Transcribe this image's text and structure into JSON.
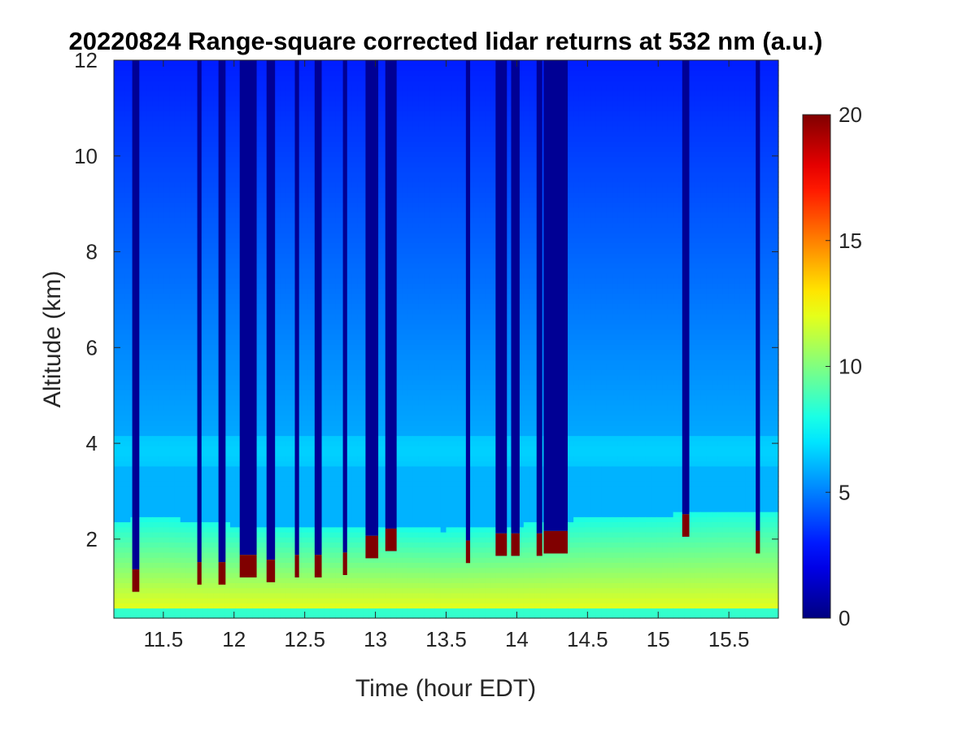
{
  "chart_data": {
    "type": "heatmap",
    "title": "20220824  Range-square corrected lidar returns at 532 nm (a.u.)",
    "xlabel": "Time (hour EDT)",
    "ylabel": "Altitude (km)",
    "xlim": [
      11.15,
      15.85
    ],
    "ylim": [
      0.35,
      12
    ],
    "xticks": [
      11.5,
      12,
      12.5,
      13,
      13.5,
      14,
      14.5,
      15,
      15.5
    ],
    "xtick_labels": [
      "11.5",
      "12",
      "12.5",
      "13",
      "13.5",
      "14",
      "14.5",
      "15",
      "15.5"
    ],
    "yticks": [
      2,
      4,
      6,
      8,
      10,
      12
    ],
    "ytick_labels": [
      "2",
      "4",
      "6",
      "8",
      "10",
      "12"
    ],
    "colorbar": {
      "range": [
        0,
        20
      ],
      "ticks": [
        0,
        5,
        10,
        15,
        20
      ],
      "tick_labels": [
        "0",
        "5",
        "10",
        "15",
        "20"
      ],
      "colormap": "jet"
    },
    "boundary_layer_top_km": [
      {
        "t": 11.15,
        "h": 2.4
      },
      {
        "t": 11.5,
        "h": 2.45
      },
      {
        "t": 12.0,
        "h": 2.3
      },
      {
        "t": 12.5,
        "h": 2.25
      },
      {
        "t": 13.0,
        "h": 2.25
      },
      {
        "t": 13.5,
        "h": 2.2
      },
      {
        "t": 14.0,
        "h": 2.3
      },
      {
        "t": 14.5,
        "h": 2.45
      },
      {
        "t": 15.0,
        "h": 2.5
      },
      {
        "t": 15.5,
        "h": 2.6
      },
      {
        "t": 15.85,
        "h": 2.6
      }
    ],
    "elevated_aerosol_layer_km": [
      3.5,
      4.2
    ],
    "surface_return_value": 12,
    "free_troposphere_value": 3,
    "cloud_saturation_value": 20,
    "cloud_events": [
      {
        "t_start": 11.28,
        "t_end": 11.33,
        "base_km": 1.25
      },
      {
        "t_start": 11.74,
        "t_end": 11.77,
        "base_km": 1.4
      },
      {
        "t_start": 11.89,
        "t_end": 11.94,
        "base_km": 1.4
      },
      {
        "t_start": 12.04,
        "t_end": 12.16,
        "base_km": 1.55
      },
      {
        "t_start": 12.23,
        "t_end": 12.29,
        "base_km": 1.45
      },
      {
        "t_start": 12.43,
        "t_end": 12.46,
        "base_km": 1.55
      },
      {
        "t_start": 12.57,
        "t_end": 12.62,
        "base_km": 1.55
      },
      {
        "t_start": 12.77,
        "t_end": 12.8,
        "base_km": 1.6
      },
      {
        "t_start": 12.93,
        "t_end": 13.02,
        "base_km": 1.95
      },
      {
        "t_start": 13.07,
        "t_end": 13.15,
        "base_km": 2.1
      },
      {
        "t_start": 13.64,
        "t_end": 13.67,
        "base_km": 1.85
      },
      {
        "t_start": 13.85,
        "t_end": 13.93,
        "base_km": 2.0
      },
      {
        "t_start": 13.96,
        "t_end": 14.02,
        "base_km": 2.0
      },
      {
        "t_start": 14.14,
        "t_end": 14.18,
        "base_km": 2.0
      },
      {
        "t_start": 14.19,
        "t_end": 14.36,
        "base_km": 2.05
      },
      {
        "t_start": 15.17,
        "t_end": 15.22,
        "base_km": 2.4
      },
      {
        "t_start": 15.69,
        "t_end": 15.72,
        "base_km": 2.05
      }
    ]
  }
}
